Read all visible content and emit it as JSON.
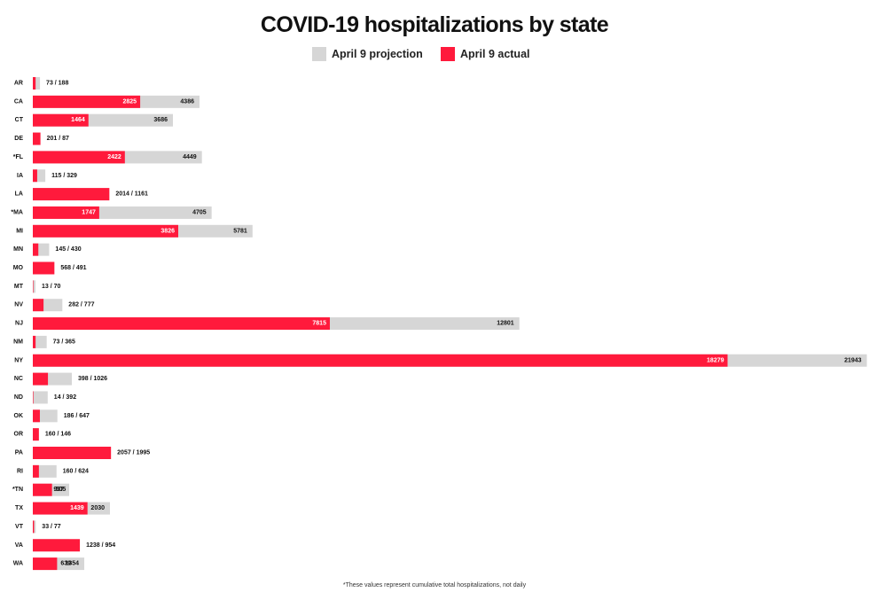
{
  "chart_data": {
    "type": "bar",
    "title": "COVID-19 hospitalizations by state",
    "footnote": "*These values represent cumulative total hospitalizations, not daily",
    "colors": {
      "projection": "#d6d6d6",
      "actual": "#ff1a3c"
    },
    "series": [
      {
        "name": "April 9 projection",
        "key": "projection"
      },
      {
        "name": "April 9 actual",
        "key": "actual"
      }
    ],
    "xlim": [
      0,
      22000
    ],
    "rows": [
      {
        "state": "AR",
        "projection": 188,
        "actual": 73,
        "label": "73 / 188",
        "style": "pair"
      },
      {
        "state": "CA",
        "projection": 4386,
        "actual": 2825,
        "label_actual": "2825",
        "label_projection": "4386",
        "style": "split"
      },
      {
        "state": "CT",
        "projection": 3686,
        "actual": 1464,
        "label_actual": "1464",
        "label_projection": "3686",
        "style": "split"
      },
      {
        "state": "DE",
        "projection": 87,
        "actual": 201,
        "label": "201 / 87",
        "style": "pair"
      },
      {
        "state": "*FL",
        "projection": 4449,
        "actual": 2422,
        "label_actual": "2422",
        "label_projection": "4449",
        "style": "split"
      },
      {
        "state": "IA",
        "projection": 329,
        "actual": 115,
        "label": "115 / 329",
        "style": "pair"
      },
      {
        "state": "LA",
        "projection": 1161,
        "actual": 2014,
        "label": "2014 / 1161",
        "style": "pair"
      },
      {
        "state": "*MA",
        "projection": 4705,
        "actual": 1747,
        "label_actual": "1747",
        "label_projection": "4705",
        "style": "split"
      },
      {
        "state": "MI",
        "projection": 5781,
        "actual": 3826,
        "label_actual": "3826",
        "label_projection": "5781",
        "style": "split"
      },
      {
        "state": "MN",
        "projection": 430,
        "actual": 145,
        "label": "145 / 430",
        "style": "pair"
      },
      {
        "state": "MO",
        "projection": 491,
        "actual": 568,
        "label": "568 / 491",
        "style": "pair"
      },
      {
        "state": "MT",
        "projection": 70,
        "actual": 13,
        "label": "13 / 70",
        "style": "pair"
      },
      {
        "state": "NV",
        "projection": 777,
        "actual": 282,
        "label": "282 / 777",
        "style": "pair"
      },
      {
        "state": "NJ",
        "projection": 12801,
        "actual": 7815,
        "label_actual": "7815",
        "label_projection": "12801",
        "style": "split"
      },
      {
        "state": "NM",
        "projection": 365,
        "actual": 73,
        "label": "73 / 365",
        "style": "pair"
      },
      {
        "state": "NY",
        "projection": 21943,
        "actual": 18279,
        "label_actual": "18279",
        "label_projection": "21943",
        "style": "split"
      },
      {
        "state": "NC",
        "projection": 1026,
        "actual": 398,
        "label": "398 / 1026",
        "style": "pair"
      },
      {
        "state": "ND",
        "projection": 392,
        "actual": 14,
        "label": "14 / 392",
        "style": "pair"
      },
      {
        "state": "OK",
        "projection": 647,
        "actual": 186,
        "label": "186 / 647",
        "style": "pair"
      },
      {
        "state": "OR",
        "projection": 146,
        "actual": 160,
        "label": "160 / 146",
        "style": "pair"
      },
      {
        "state": "PA",
        "projection": 1995,
        "actual": 2057,
        "label": "2057 / 1995",
        "style": "pair"
      },
      {
        "state": "RI",
        "projection": 624,
        "actual": 160,
        "label": "160 / 624",
        "style": "pair"
      },
      {
        "state": "*TN",
        "projection": 957,
        "actual": 505,
        "label_actual": "505",
        "label_projection": "957",
        "style": "split"
      },
      {
        "state": "TX",
        "projection": 2030,
        "actual": 1439,
        "label_actual": "1439",
        "label_projection": "2030",
        "style": "split"
      },
      {
        "state": "VT",
        "projection": 77,
        "actual": 33,
        "label": "33 / 77",
        "style": "pair"
      },
      {
        "state": "VA",
        "projection": 954,
        "actual": 1238,
        "label": "1238 / 954",
        "style": "pair"
      },
      {
        "state": "WA",
        "projection": 1354,
        "actual": 639,
        "label_actual": "639",
        "label_projection": "1354",
        "style": "split"
      }
    ]
  }
}
